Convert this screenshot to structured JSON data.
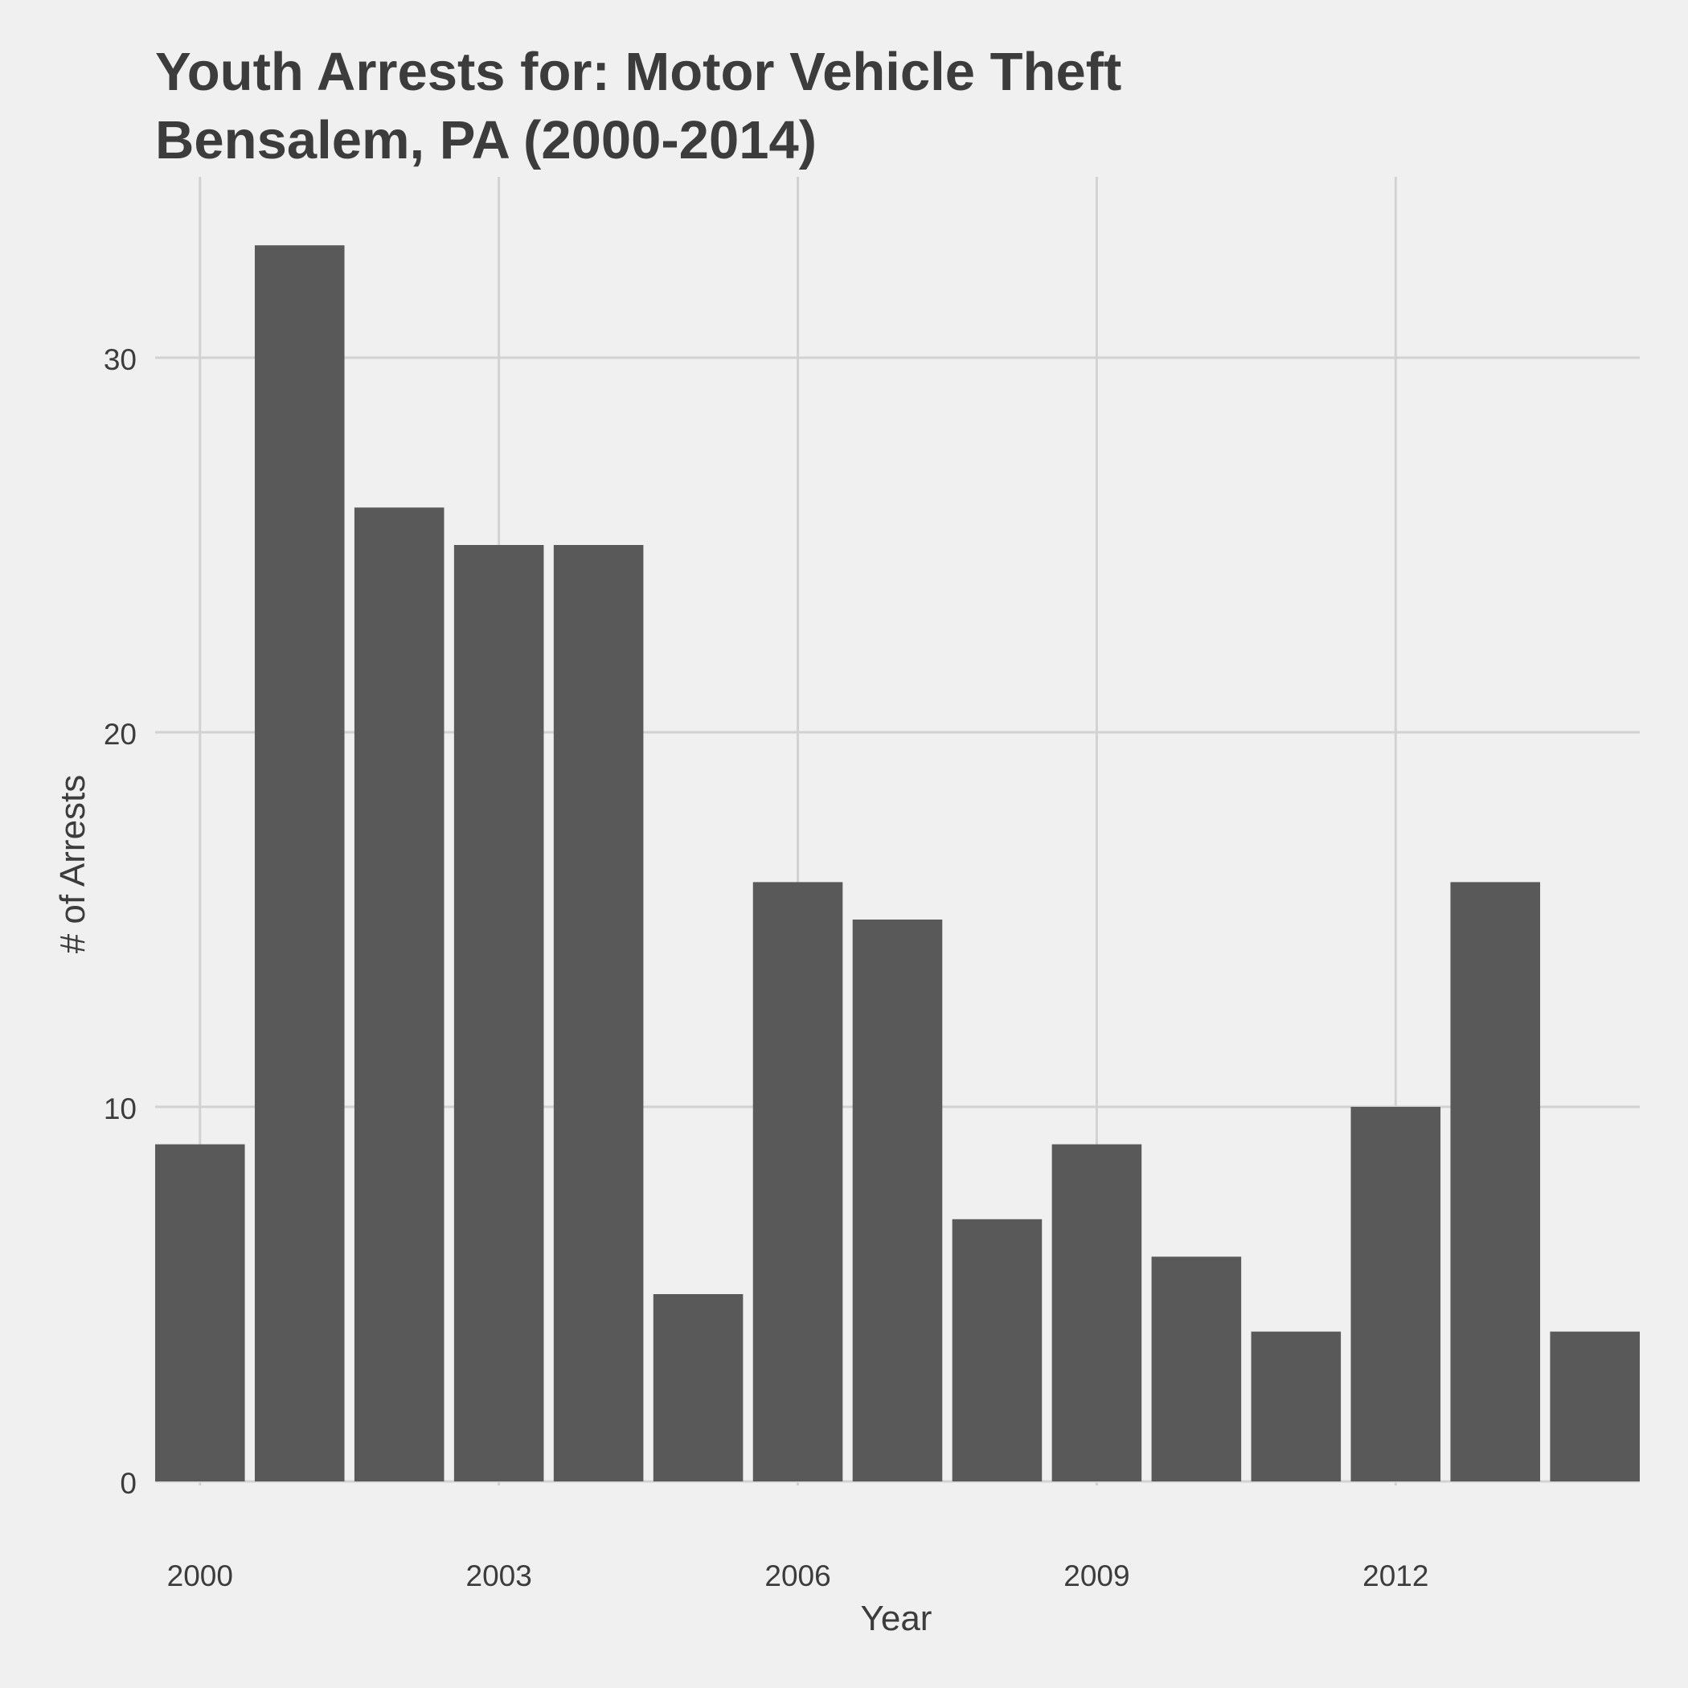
{
  "chart_data": {
    "type": "bar",
    "title_lines": [
      "Youth Arrests for: Motor Vehicle Theft",
      "Bensalem, PA (2000-2014)"
    ],
    "xlabel": "Year",
    "ylabel": "# of Arrests",
    "x": [
      2000,
      2001,
      2002,
      2003,
      2004,
      2005,
      2006,
      2007,
      2008,
      2009,
      2010,
      2011,
      2012,
      2013,
      2014
    ],
    "values": [
      9,
      33,
      26,
      25,
      25,
      5,
      16,
      15,
      7,
      9,
      6,
      4,
      10,
      16,
      4
    ],
    "x_ticks": [
      "2000",
      "2003",
      "2006",
      "2009",
      "2012"
    ],
    "y_ticks": [
      "0",
      "10",
      "20",
      "30"
    ],
    "xlim": [
      1999.55,
      2014.45
    ],
    "ylim": [
      0,
      33
    ],
    "grid": true,
    "legend": "none",
    "colors": {
      "background": "#f0f0f0",
      "bar": "#595959",
      "grid": "#d2d2d2",
      "text": "#3c3c3c"
    }
  }
}
